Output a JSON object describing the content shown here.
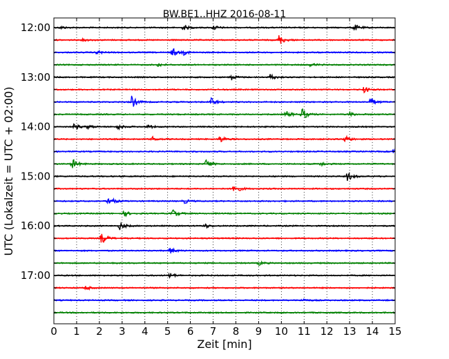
{
  "chart_data": {
    "type": "line",
    "title": "BW.BE1..HHZ 2016-08-11",
    "xlabel": "Zeit  [min]",
    "ylabel": "UTC (Lokalzeit = UTC + 02:00)",
    "xlim": [
      0,
      15
    ],
    "x_ticks": [
      "0",
      "1",
      "2",
      "3",
      "4",
      "5",
      "6",
      "7",
      "8",
      "9",
      "10",
      "11",
      "12",
      "13",
      "14",
      "15"
    ],
    "y_tick_labels": [
      "12:00",
      "13:00",
      "14:00",
      "15:00",
      "16:00",
      "17:00"
    ],
    "grid": "vertical dotted at each minute",
    "trace_interval_min": 15,
    "colors": [
      "#000000",
      "#ff0000",
      "#0000ff",
      "#008000"
    ],
    "traces": [
      {
        "start": "12:00",
        "color": "#000000",
        "events": [
          {
            "t": 0.3,
            "a": 2
          },
          {
            "t": 5.7,
            "a": 4
          },
          {
            "t": 7.0,
            "a": 4
          },
          {
            "t": 13.2,
            "a": 5
          }
        ]
      },
      {
        "start": "12:15",
        "color": "#ff0000",
        "events": [
          {
            "t": 1.3,
            "a": 2
          },
          {
            "t": 9.9,
            "a": 8
          }
        ]
      },
      {
        "start": "12:30",
        "color": "#0000ff",
        "events": [
          {
            "t": 1.9,
            "a": 3
          },
          {
            "t": 5.2,
            "a": 7
          },
          {
            "t": 5.7,
            "a": 3
          }
        ]
      },
      {
        "start": "12:45",
        "color": "#008000",
        "events": [
          {
            "t": 4.6,
            "a": 3
          },
          {
            "t": 11.3,
            "a": 3
          }
        ]
      },
      {
        "start": "13:00",
        "color": "#000000",
        "events": [
          {
            "t": 7.8,
            "a": 4
          },
          {
            "t": 9.5,
            "a": 5
          }
        ]
      },
      {
        "start": "13:15",
        "color": "#ff0000",
        "events": [
          {
            "t": 13.6,
            "a": 5
          }
        ]
      },
      {
        "start": "13:30",
        "color": "#0000ff",
        "events": [
          {
            "t": 3.4,
            "a": 10
          },
          {
            "t": 6.9,
            "a": 6
          },
          {
            "t": 13.9,
            "a": 7
          }
        ]
      },
      {
        "start": "13:45",
        "color": "#008000",
        "events": [
          {
            "t": 10.2,
            "a": 5
          },
          {
            "t": 10.9,
            "a": 10
          },
          {
            "t": 13.0,
            "a": 3
          }
        ]
      },
      {
        "start": "14:00",
        "color": "#000000",
        "events": [
          {
            "t": 0.9,
            "a": 5
          },
          {
            "t": 1.5,
            "a": 3
          },
          {
            "t": 2.8,
            "a": 4
          },
          {
            "t": 4.1,
            "a": 3
          }
        ]
      },
      {
        "start": "14:15",
        "color": "#ff0000",
        "events": [
          {
            "t": 4.3,
            "a": 4
          },
          {
            "t": 7.3,
            "a": 5
          },
          {
            "t": 12.8,
            "a": 6
          }
        ]
      },
      {
        "start": "14:30",
        "color": "#0000ff",
        "events": [
          {
            "t": 14.9,
            "a": 3
          }
        ]
      },
      {
        "start": "14:45",
        "color": "#008000",
        "events": [
          {
            "t": 0.8,
            "a": 8
          },
          {
            "t": 6.7,
            "a": 7
          },
          {
            "t": 11.7,
            "a": 3
          }
        ]
      },
      {
        "start": "15:00",
        "color": "#000000",
        "events": [
          {
            "t": 12.9,
            "a": 7
          }
        ]
      },
      {
        "start": "15:15",
        "color": "#ff0000",
        "events": [
          {
            "t": 7.9,
            "a": 9
          }
        ]
      },
      {
        "start": "15:30",
        "color": "#0000ff",
        "events": [
          {
            "t": 2.4,
            "a": 9
          },
          {
            "t": 5.7,
            "a": 4
          }
        ]
      },
      {
        "start": "15:45",
        "color": "#008000",
        "events": [
          {
            "t": 3.1,
            "a": 4
          },
          {
            "t": 5.2,
            "a": 7
          }
        ]
      },
      {
        "start": "16:00",
        "color": "#000000",
        "events": [
          {
            "t": 2.9,
            "a": 6
          },
          {
            "t": 6.6,
            "a": 4
          }
        ]
      },
      {
        "start": "16:15",
        "color": "#ff0000",
        "events": [
          {
            "t": 2.1,
            "a": 9
          }
        ]
      },
      {
        "start": "16:30",
        "color": "#0000ff",
        "events": [
          {
            "t": 5.1,
            "a": 5
          }
        ]
      },
      {
        "start": "16:45",
        "color": "#008000",
        "events": [
          {
            "t": 9.0,
            "a": 3
          }
        ]
      },
      {
        "start": "17:00",
        "color": "#000000",
        "events": [
          {
            "t": 5.1,
            "a": 4
          }
        ]
      },
      {
        "start": "17:15",
        "color": "#ff0000",
        "events": [
          {
            "t": 1.4,
            "a": 3
          }
        ]
      },
      {
        "start": "17:30",
        "color": "#0000ff",
        "events": [
          {
            "t": 10.9,
            "a": 3
          }
        ]
      },
      {
        "start": "17:45",
        "color": "#008000",
        "events": []
      }
    ]
  }
}
